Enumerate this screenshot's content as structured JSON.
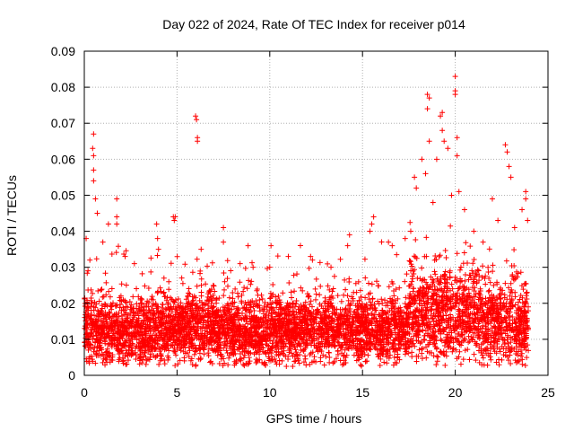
{
  "chart_data": {
    "type": "scatter",
    "title": "Day 022 of 2024, Rate Of TEC Index for receiver p014",
    "xlabel": "GPS time / hours",
    "ylabel": "ROTI / TECUs",
    "xlim": [
      0,
      25
    ],
    "ylim": [
      0,
      0.09
    ],
    "xticks": [
      "0",
      "5",
      "10",
      "15",
      "20",
      "25"
    ],
    "yticks": [
      "0",
      "0.01",
      "0.02",
      "0.03",
      "0.04",
      "0.05",
      "0.06",
      "0.07",
      "0.08",
      "0.09"
    ],
    "grid": true,
    "marker": "+",
    "color": "#ff0000",
    "series": [
      {
        "name": "ROTI",
        "description": "dense scatter across 0-24 h; baseline mostly 0.005-0.025 TECUs, elevated 18-21 h",
        "sample_points": [
          [
            0.1,
            0.038
          ],
          [
            0.2,
            0.029
          ],
          [
            0.3,
            0.032
          ],
          [
            0.45,
            0.063
          ],
          [
            0.5,
            0.067
          ],
          [
            0.5,
            0.061
          ],
          [
            0.5,
            0.057
          ],
          [
            0.5,
            0.054
          ],
          [
            0.6,
            0.049
          ],
          [
            0.7,
            0.045
          ],
          [
            1.0,
            0.037
          ],
          [
            1.3,
            0.042
          ],
          [
            1.75,
            0.049
          ],
          [
            1.75,
            0.042
          ],
          [
            1.75,
            0.044
          ],
          [
            2.2,
            0.033
          ],
          [
            2.7,
            0.031
          ],
          [
            3.9,
            0.042
          ],
          [
            3.95,
            0.038
          ],
          [
            4.0,
            0.035
          ],
          [
            4.8,
            0.044
          ],
          [
            4.85,
            0.043
          ],
          [
            4.9,
            0.044
          ],
          [
            6.0,
            0.072
          ],
          [
            6.05,
            0.071
          ],
          [
            6.1,
            0.066
          ],
          [
            6.1,
            0.065
          ],
          [
            6.3,
            0.035
          ],
          [
            7.5,
            0.041
          ],
          [
            7.5,
            0.037
          ],
          [
            8.4,
            0.031
          ],
          [
            9.1,
            0.03
          ],
          [
            10.0,
            0.03
          ],
          [
            11.0,
            0.033
          ],
          [
            12.2,
            0.033
          ],
          [
            12.3,
            0.032
          ],
          [
            13.3,
            0.03
          ],
          [
            14.2,
            0.036
          ],
          [
            14.3,
            0.039
          ],
          [
            15.4,
            0.04
          ],
          [
            15.5,
            0.042
          ],
          [
            15.6,
            0.044
          ],
          [
            16.4,
            0.037
          ],
          [
            16.6,
            0.036
          ],
          [
            17.3,
            0.038
          ],
          [
            17.6,
            0.04
          ],
          [
            17.8,
            0.055
          ],
          [
            17.9,
            0.052
          ],
          [
            18.2,
            0.06
          ],
          [
            18.4,
            0.056
          ],
          [
            18.5,
            0.078
          ],
          [
            18.5,
            0.074
          ],
          [
            18.6,
            0.077
          ],
          [
            18.6,
            0.065
          ],
          [
            18.8,
            0.048
          ],
          [
            19.0,
            0.06
          ],
          [
            19.2,
            0.072
          ],
          [
            19.3,
            0.073
          ],
          [
            19.3,
            0.068
          ],
          [
            19.4,
            0.065
          ],
          [
            19.6,
            0.063
          ],
          [
            19.8,
            0.05
          ],
          [
            20.0,
            0.083
          ],
          [
            20.0,
            0.079
          ],
          [
            20.0,
            0.078
          ],
          [
            20.1,
            0.066
          ],
          [
            20.1,
            0.061
          ],
          [
            20.2,
            0.051
          ],
          [
            20.5,
            0.046
          ],
          [
            21.0,
            0.04
          ],
          [
            21.5,
            0.037
          ],
          [
            22.0,
            0.049
          ],
          [
            22.3,
            0.043
          ],
          [
            22.7,
            0.064
          ],
          [
            22.8,
            0.062
          ],
          [
            22.9,
            0.058
          ],
          [
            23.0,
            0.055
          ],
          [
            23.2,
            0.041
          ],
          [
            23.6,
            0.046
          ],
          [
            23.8,
            0.051
          ],
          [
            23.8,
            0.049
          ],
          [
            23.9,
            0.043
          ]
        ]
      }
    ]
  }
}
